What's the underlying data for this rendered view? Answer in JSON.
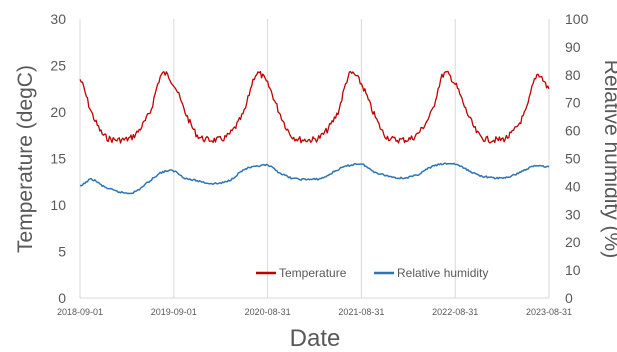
{
  "chart_data": {
    "type": "line",
    "title": "",
    "xlabel": "Date",
    "ylabel": "Temperature (degC)",
    "y2label": "Relative humidity (%)",
    "x_ticks": [
      "2018-09-01",
      "2019-09-01",
      "2020-08-31",
      "2021-08-31",
      "2022-08-31",
      "2023-08-31"
    ],
    "ylim": [
      0,
      30
    ],
    "yticks": [
      0,
      5,
      10,
      15,
      20,
      25,
      30
    ],
    "y2lim": [
      0,
      100
    ],
    "y2ticks": [
      0,
      10,
      20,
      30,
      40,
      50,
      60,
      70,
      80,
      90,
      100
    ],
    "grid": "vertical",
    "legend_position": "bottom-right",
    "series": [
      {
        "name": "Temperature",
        "axis": "left",
        "color": "#C00000",
        "x": [
          "2018-09-01",
          "2018-10-15",
          "2018-12-01",
          "2019-02-01",
          "2019-04-01",
          "2019-06-01",
          "2019-07-15",
          "2019-09-01",
          "2019-10-15",
          "2019-12-01",
          "2020-02-01",
          "2020-04-01",
          "2020-06-01",
          "2020-07-15",
          "2020-08-31",
          "2020-10-15",
          "2020-12-01",
          "2021-02-01",
          "2021-04-01",
          "2021-06-01",
          "2021-07-15",
          "2021-08-31",
          "2021-10-15",
          "2021-12-01",
          "2022-02-01",
          "2022-04-01",
          "2022-06-01",
          "2022-07-15",
          "2022-08-31",
          "2022-10-15",
          "2022-12-01",
          "2023-02-01",
          "2023-04-01",
          "2023-06-01",
          "2023-07-15",
          "2023-08-31"
        ],
        "values": [
          23.5,
          20,
          17.5,
          17,
          17.5,
          20,
          24,
          23,
          20,
          17.5,
          17,
          17.5,
          20,
          24,
          23,
          20,
          17.5,
          17,
          17.5,
          20,
          24,
          23,
          20,
          17.5,
          17,
          17.5,
          20,
          24,
          23,
          20,
          17.5,
          17,
          17.5,
          20,
          24,
          22.5
        ]
      },
      {
        "name": "Relative humidity",
        "axis": "right",
        "color": "#2E75B6",
        "x": [
          "2018-09-01",
          "2018-10-15",
          "2018-12-01",
          "2019-02-01",
          "2019-04-01",
          "2019-06-01",
          "2019-07-15",
          "2019-09-01",
          "2019-10-15",
          "2019-12-01",
          "2020-02-01",
          "2020-04-01",
          "2020-06-01",
          "2020-07-15",
          "2020-08-31",
          "2020-10-15",
          "2020-12-01",
          "2021-02-01",
          "2021-04-01",
          "2021-06-01",
          "2021-07-15",
          "2021-08-31",
          "2021-10-15",
          "2021-12-01",
          "2022-02-01",
          "2022-04-01",
          "2022-06-01",
          "2022-07-15",
          "2022-08-31",
          "2022-10-15",
          "2022-12-01",
          "2023-02-01",
          "2023-04-01",
          "2023-06-01",
          "2023-07-15",
          "2023-08-31"
        ],
        "values": [
          40,
          42.5,
          40,
          38,
          38,
          42,
          45,
          45.5,
          43,
          42,
          41,
          42,
          46,
          47,
          47.5,
          45,
          43,
          42.5,
          43,
          46,
          47.5,
          48,
          45.5,
          44,
          43,
          44,
          47,
          48,
          48,
          46,
          44,
          43,
          43.5,
          46,
          47.5,
          47
        ]
      }
    ]
  }
}
